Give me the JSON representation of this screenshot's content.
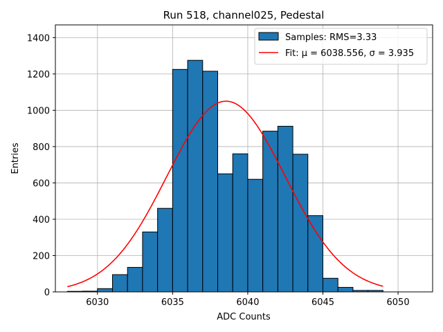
{
  "chart_data": {
    "type": "bar",
    "title": "Run 518, channel025, Pedestal",
    "xlabel": "ADC Counts",
    "ylabel": "Entries",
    "xlim": [
      6027.2,
      6052.3
    ],
    "ylim": [
      0,
      1470
    ],
    "grid": true,
    "x_ticks": [
      6030,
      6035,
      6040,
      6045,
      6050
    ],
    "y_ticks": [
      0,
      200,
      400,
      600,
      800,
      1000,
      1200,
      1400
    ],
    "histogram": {
      "name": "Samples",
      "bin_edges": [
        6028,
        6029,
        6030,
        6031,
        6032,
        6033,
        6034,
        6035,
        6036,
        6037,
        6038,
        6039,
        6040,
        6041,
        6042,
        6043,
        6044,
        6045,
        6046,
        6047,
        6048,
        6049,
        6050,
        6051
      ],
      "counts": [
        3,
        4,
        18,
        95,
        135,
        330,
        460,
        1225,
        1275,
        1215,
        650,
        760,
        620,
        885,
        912,
        758,
        420,
        75,
        25,
        8,
        8,
        0,
        0
      ],
      "color": "#1f77b4",
      "edge_color": "#000000"
    },
    "fit": {
      "mu": 6038.556,
      "sigma": 3.935,
      "amplitude": 1050,
      "x_range": [
        6028,
        6049
      ],
      "color": "#ff0000"
    },
    "legend": {
      "position": "top-right",
      "entries": [
        {
          "label": "Samples: RMS=3.33",
          "kind": "patch"
        },
        {
          "label": "Fit: μ = 6038.556, σ = 3.935",
          "kind": "line"
        }
      ]
    }
  }
}
